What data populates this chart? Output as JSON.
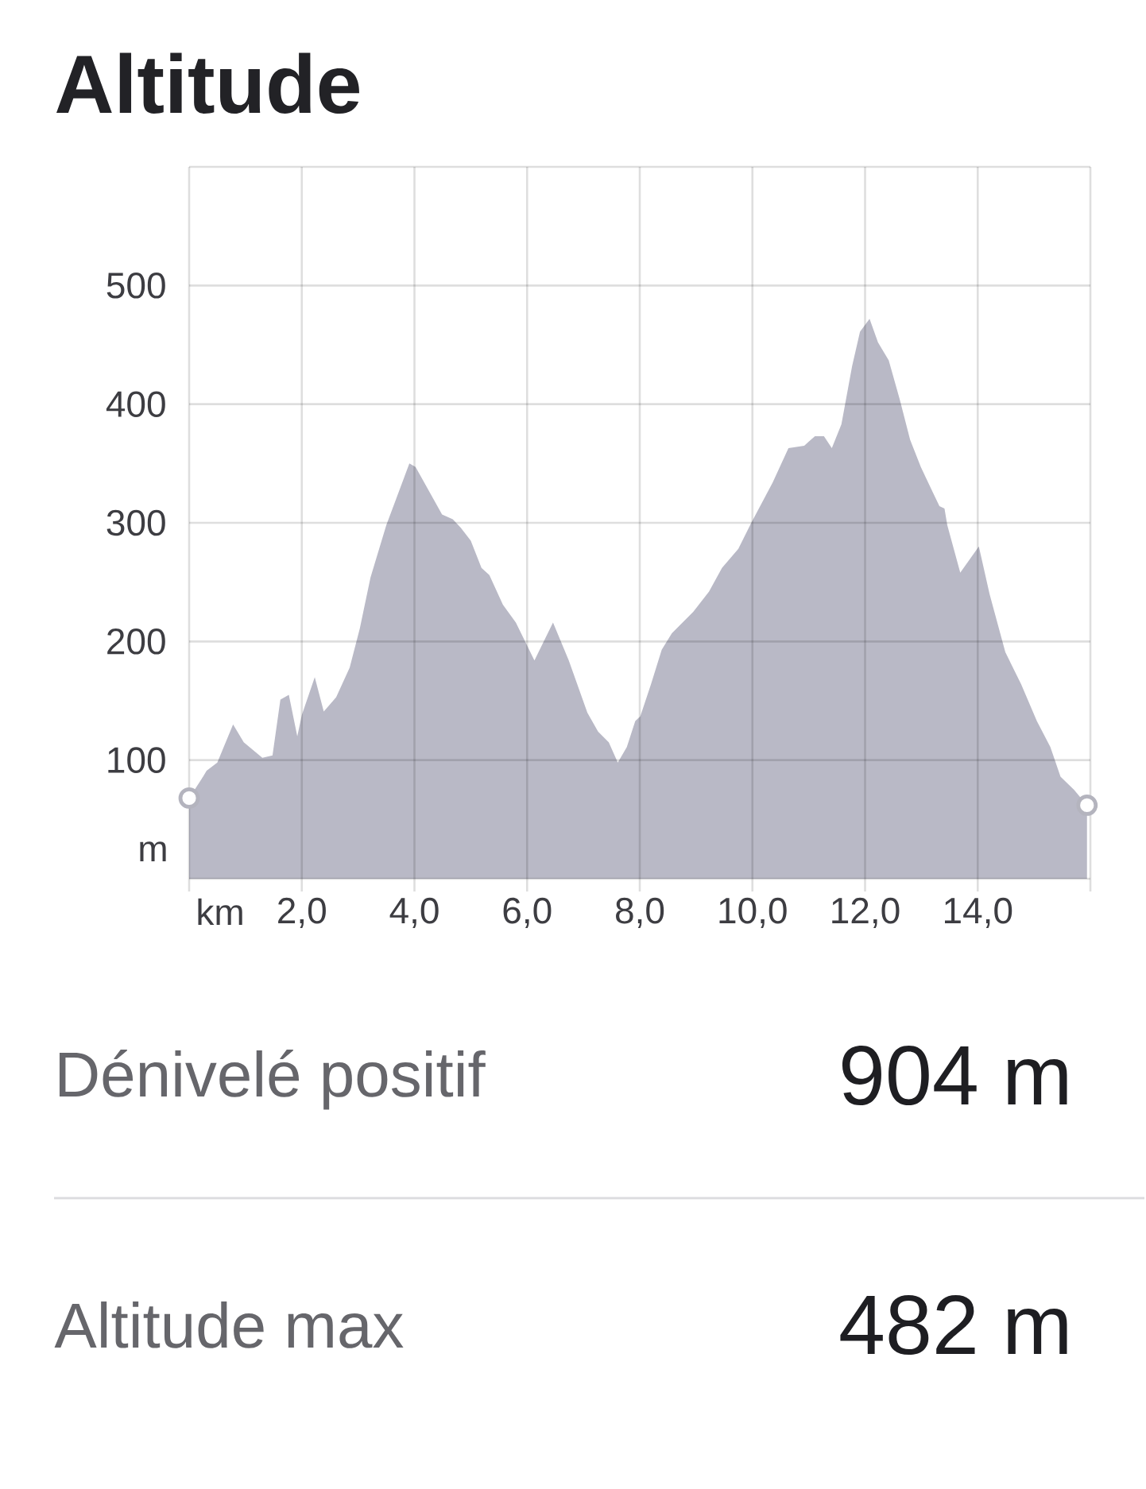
{
  "chart_data": {
    "type": "area",
    "title": "Altitude",
    "xlabel": "km",
    "ylabel": "m",
    "xlim": [
      0,
      16
    ],
    "ylim": [
      0,
      600
    ],
    "xticks": [
      {
        "value": 0,
        "label": null
      },
      {
        "value": 2,
        "label": "2,0"
      },
      {
        "value": 4,
        "label": "4,0"
      },
      {
        "value": 6,
        "label": "6,0"
      },
      {
        "value": 8,
        "label": "8,0"
      },
      {
        "value": 10,
        "label": "10,0"
      },
      {
        "value": 12,
        "label": "12,0"
      },
      {
        "value": 14,
        "label": "14,0"
      },
      {
        "value": 16,
        "label": null
      }
    ],
    "yticks": [
      100,
      200,
      300,
      400,
      500
    ],
    "grid": true,
    "series": [
      {
        "color": "#b9b9c6",
        "x": [
          0,
          0.22,
          0.31,
          0.5,
          0.78,
          0.97,
          1.3,
          1.48,
          1.62,
          1.77,
          1.92,
          2.0,
          2.23,
          2.39,
          2.61,
          2.85,
          3.03,
          3.22,
          3.5,
          3.91,
          4.02,
          4.49,
          4.68,
          4.82,
          5.0,
          5.19,
          5.33,
          5.57,
          5.8,
          6.13,
          6.46,
          6.74,
          7.07,
          7.26,
          7.45,
          7.61,
          7.77,
          7.92,
          8.01,
          8.2,
          8.39,
          8.57,
          8.95,
          9.23,
          9.46,
          9.75,
          9.98,
          10.36,
          10.64,
          10.92,
          11.11,
          11.27,
          11.41,
          11.58,
          11.77,
          11.91,
          12.08,
          12.23,
          12.42,
          12.61,
          12.8,
          12.99,
          13.17,
          13.32,
          13.41,
          13.46,
          13.69,
          14.02,
          14.21,
          14.49,
          14.77,
          15.05,
          15.29,
          15.47,
          15.71,
          15.94
        ],
        "values": [
          68,
          84,
          91,
          98,
          130,
          115,
          102,
          104,
          151,
          155,
          120,
          138,
          170,
          141,
          153,
          178,
          211,
          254,
          298,
          350,
          347,
          307,
          303,
          296,
          285,
          262,
          256,
          231,
          216,
          184,
          216,
          184,
          140,
          124,
          115,
          98,
          111,
          133,
          137,
          164,
          193,
          207,
          225,
          242,
          262,
          278,
          300,
          334,
          363,
          365,
          373,
          373,
          363,
          383,
          432,
          461,
          472,
          452,
          437,
          405,
          370,
          347,
          329,
          314,
          312,
          298,
          258,
          280,
          240,
          191,
          164,
          133,
          111,
          86,
          75,
          62
        ]
      },
      {
        "type": "scatter",
        "color": "#b4b4be",
        "marker": "circle",
        "x": [
          0,
          15.94
        ],
        "values": [
          68,
          62
        ]
      }
    ],
    "annotations": [
      "Dénivelé positif",
      "904 m",
      "Altitude max",
      "482 m"
    ]
  }
}
